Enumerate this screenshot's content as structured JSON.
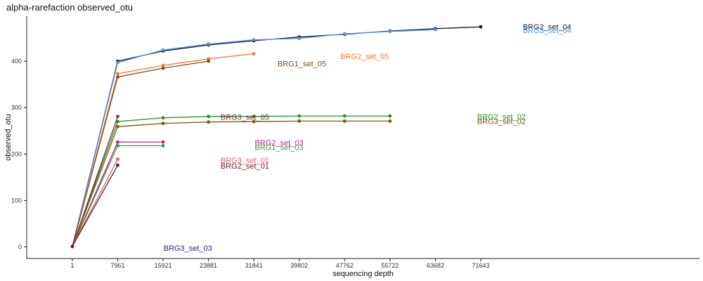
{
  "chart_data": {
    "type": "line",
    "title": "alpha-rarefaction observed_otu",
    "xlabel": "sequencing depth",
    "ylabel": "observed_otu",
    "x_ticks": [
      1,
      7961,
      15921,
      23881,
      31841,
      39802,
      47762,
      55722,
      63682,
      71643
    ],
    "y_ticks": [
      0,
      100,
      200,
      300,
      400
    ],
    "xlim": [
      -8000,
      110000
    ],
    "ylim": [
      -25,
      497
    ],
    "grid": false,
    "legend": "none",
    "series": [
      {
        "name": "BRG2_set_04",
        "color": "#1a1a1a",
        "x": [
          1,
          7961,
          15921,
          23881,
          31841,
          39802,
          47762,
          55722,
          63682,
          71643
        ],
        "y": [
          1,
          400,
          422,
          435,
          444,
          452,
          458,
          465,
          470,
          474
        ],
        "label_at": [
          79000,
          474
        ]
      },
      {
        "name": "BRG3_set_04",
        "color": "#5b8fe0",
        "x": [
          1,
          7961,
          15921,
          23881,
          31841,
          39802,
          47762,
          55722,
          63682
        ],
        "y": [
          1,
          397,
          424,
          437,
          446,
          449,
          459,
          464,
          468
        ],
        "label_at": [
          79000,
          467
        ]
      },
      {
        "name": "BRG2_set_05",
        "color": "#f0783a",
        "x": [
          1,
          7961,
          15921,
          23881,
          31841
        ],
        "y": [
          1,
          373,
          391,
          405,
          416
        ],
        "label_at": [
          47000,
          411
        ]
      },
      {
        "name": "BRG1_set_05",
        "color": "#7a4f14",
        "x": [
          1,
          7961,
          15921,
          23881
        ],
        "y": [
          1,
          366,
          385,
          400
        ],
        "label_at": [
          36000,
          395
        ]
      },
      {
        "name": "BRG2_set_02",
        "color": "#2e8b2e",
        "x": [
          1,
          7961,
          15921,
          23881,
          31841,
          39802,
          47762,
          55722
        ],
        "y": [
          1,
          270,
          278,
          281,
          281,
          282,
          282,
          282
        ],
        "label_at": [
          71000,
          281
        ]
      },
      {
        "name": "BRG3_set_02",
        "color": "#7a5a10",
        "x": [
          1,
          7961,
          15921,
          23881,
          31841,
          39802,
          47762,
          55722
        ],
        "y": [
          1,
          259,
          266,
          269,
          270,
          271,
          271,
          271
        ],
        "label_at": [
          71000,
          271
        ]
      },
      {
        "name": "BRG3_set_05",
        "color": "#7a3040",
        "x": [
          1,
          7961
        ],
        "y": [
          1,
          281
        ],
        "label_at": [
          26000,
          280
        ]
      },
      {
        "name": "BRG2_set_03",
        "color": "#c0208a",
        "x": [
          1,
          7961,
          15921
        ],
        "y": [
          1,
          226,
          226
        ],
        "label_at": [
          32000,
          225
        ]
      },
      {
        "name": "BRG1_set_03",
        "color": "#3a9a3a",
        "x": [
          1,
          7961,
          15921
        ],
        "y": [
          1,
          218,
          218
        ],
        "label_at": [
          32000,
          215
        ]
      },
      {
        "name": "BRG3_set_01",
        "color": "#e06070",
        "x": [
          1,
          7961
        ],
        "y": [
          1,
          189
        ],
        "label_at": [
          26000,
          187
        ]
      },
      {
        "name": "BRG2_set_01",
        "color": "#6a1a2a",
        "x": [
          1,
          7961
        ],
        "y": [
          1,
          176
        ],
        "label_at": [
          26000,
          175
        ]
      },
      {
        "name": "BRG3_set_03",
        "color": "#1c1ca8",
        "x": [],
        "y": [],
        "label_at": [
          16000,
          -2
        ]
      }
    ]
  }
}
